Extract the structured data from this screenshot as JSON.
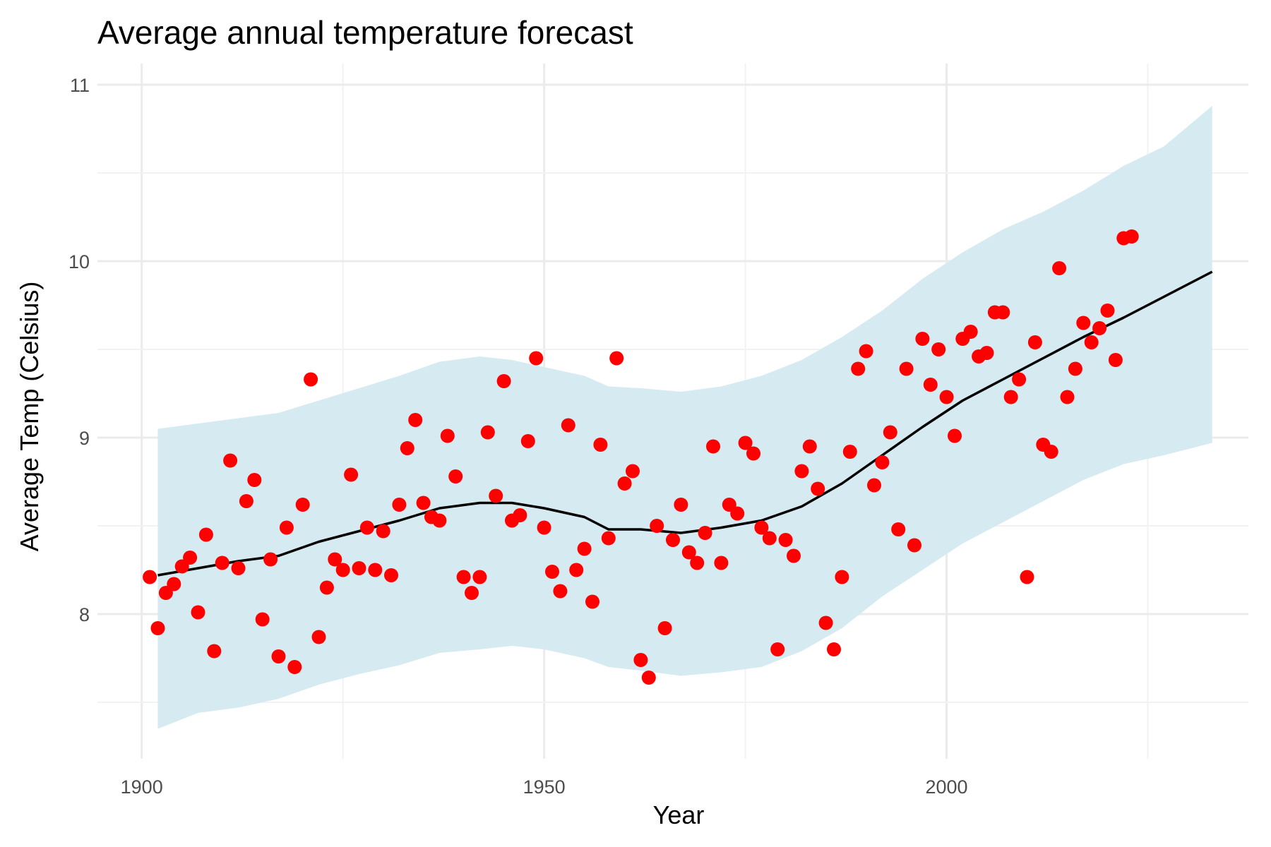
{
  "chart_data": {
    "type": "line",
    "title": "Average annual temperature forecast",
    "xlabel": "Year",
    "ylabel": "Average Temp (Celsius)",
    "xlim": [
      1894.5,
      2037.5
    ],
    "ylim": [
      7.18,
      11.08
    ],
    "x_ticks": [
      1900,
      1950,
      2000
    ],
    "y_ticks": [
      8,
      9,
      10,
      11
    ],
    "grid": true,
    "legend": "none",
    "colors": {
      "points": "#ff0000",
      "trend": "#000000",
      "band": "#d6eaf1"
    },
    "series": [
      {
        "kind": "scatter",
        "x": [
          1901,
          1902,
          1903,
          1904,
          1905,
          1906,
          1907,
          1908,
          1909,
          1910,
          1911,
          1912,
          1913,
          1914,
          1915,
          1916,
          1917,
          1918,
          1919,
          1920,
          1921,
          1922,
          1923,
          1924,
          1925,
          1926,
          1927,
          1928,
          1929,
          1930,
          1931,
          1932,
          1933,
          1934,
          1935,
          1936,
          1937,
          1938,
          1939,
          1940,
          1941,
          1942,
          1943,
          1944,
          1945,
          1946,
          1947,
          1948,
          1949,
          1950,
          1951,
          1952,
          1953,
          1954,
          1955,
          1956,
          1957,
          1958,
          1959,
          1960,
          1961,
          1962,
          1963,
          1964,
          1965,
          1966,
          1967,
          1968,
          1969,
          1970,
          1971,
          1972,
          1973,
          1974,
          1975,
          1976,
          1977,
          1978,
          1979,
          1980,
          1981,
          1982,
          1983,
          1984,
          1985,
          1986,
          1987,
          1988,
          1989,
          1990,
          1991,
          1992,
          1993,
          1994,
          1995,
          1996,
          1997,
          1998,
          1999,
          2000,
          2001,
          2002,
          2003,
          2004,
          2005,
          2006,
          2007,
          2008,
          2009,
          2010,
          2011,
          2012,
          2013,
          2014,
          2015,
          2016,
          2017,
          2018,
          2019,
          2020,
          2021,
          2022,
          2023
        ],
        "y": [
          8.21,
          7.92,
          8.12,
          8.17,
          8.27,
          8.32,
          8.01,
          8.45,
          7.79,
          8.29,
          8.87,
          8.26,
          8.64,
          8.76,
          7.97,
          8.31,
          7.76,
          8.49,
          7.7,
          8.62,
          9.33,
          7.87,
          8.15,
          8.31,
          8.25,
          8.79,
          8.26,
          8.49,
          8.25,
          8.47,
          8.22,
          8.62,
          8.94,
          9.1,
          8.63,
          8.55,
          8.53,
          9.01,
          8.78,
          8.21,
          8.12,
          8.21,
          9.03,
          8.67,
          9.32,
          8.53,
          8.56,
          8.98,
          9.45,
          8.49,
          8.24,
          8.13,
          9.07,
          8.25,
          8.37,
          8.07,
          8.96,
          8.43,
          9.45,
          8.74,
          8.81,
          7.74,
          7.64,
          8.5,
          7.92,
          8.42,
          8.62,
          8.35,
          8.29,
          8.46,
          8.95,
          8.29,
          8.62,
          8.57,
          8.97,
          8.91,
          8.49,
          8.43,
          7.8,
          8.42,
          8.33,
          8.81,
          8.95,
          8.71,
          7.95,
          7.8,
          8.21,
          8.92,
          9.39,
          9.49,
          8.73,
          8.86,
          9.03,
          8.48,
          9.39,
          8.39,
          9.56,
          9.3,
          9.5,
          9.23,
          9.01,
          9.56,
          9.6,
          9.46,
          9.48,
          9.71,
          9.71,
          9.23,
          9.33,
          8.21,
          9.54,
          8.96,
          8.92,
          9.96,
          9.23,
          9.39,
          9.65,
          9.54,
          9.62,
          9.72,
          9.44,
          10.13,
          10.14
        ]
      },
      {
        "kind": "line",
        "x": [
          1902,
          1907,
          1912,
          1917,
          1922,
          1927,
          1932,
          1937,
          1942,
          1946,
          1950,
          1955,
          1958,
          1962,
          1967,
          1972,
          1977,
          1982,
          1987,
          1992,
          1997,
          2002,
          2007,
          2012,
          2017,
          2022,
          2033
        ],
        "y": [
          8.22,
          8.26,
          8.3,
          8.33,
          8.41,
          8.47,
          8.53,
          8.6,
          8.63,
          8.63,
          8.6,
          8.55,
          8.48,
          8.48,
          8.46,
          8.49,
          8.53,
          8.61,
          8.74,
          8.9,
          9.06,
          9.21,
          9.33,
          9.45,
          9.57,
          9.68,
          9.94
        ]
      },
      {
        "kind": "band",
        "x": [
          1902,
          1907,
          1912,
          1917,
          1922,
          1927,
          1932,
          1937,
          1942,
          1946,
          1950,
          1955,
          1958,
          1962,
          1967,
          1972,
          1977,
          1982,
          1987,
          1992,
          1997,
          2002,
          2007,
          2012,
          2017,
          2022,
          2027,
          2033
        ],
        "lower": [
          7.35,
          7.44,
          7.47,
          7.52,
          7.6,
          7.66,
          7.71,
          7.78,
          7.8,
          7.82,
          7.8,
          7.75,
          7.7,
          7.68,
          7.65,
          7.67,
          7.7,
          7.79,
          7.92,
          8.1,
          8.25,
          8.4,
          8.52,
          8.64,
          8.76,
          8.85,
          8.9,
          8.97
        ],
        "upper": [
          9.05,
          9.08,
          9.11,
          9.14,
          9.21,
          9.28,
          9.35,
          9.43,
          9.46,
          9.44,
          9.4,
          9.35,
          9.29,
          9.28,
          9.26,
          9.29,
          9.35,
          9.44,
          9.57,
          9.72,
          9.9,
          10.05,
          10.18,
          10.28,
          10.4,
          10.54,
          10.65,
          10.88
        ]
      }
    ]
  }
}
